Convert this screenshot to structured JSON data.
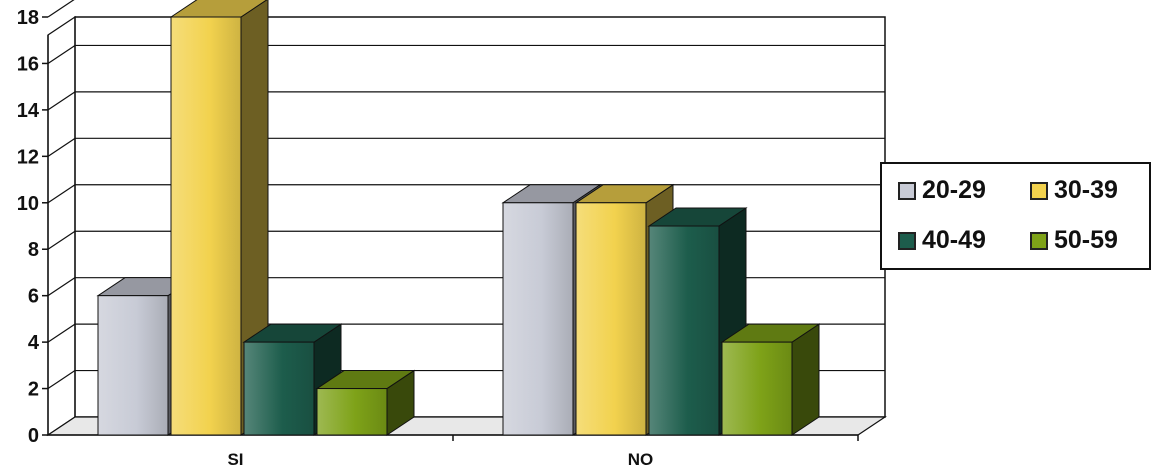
{
  "chart_data": {
    "type": "bar",
    "categories": [
      "SI",
      "NO"
    ],
    "series": [
      {
        "name": "20-29",
        "values": [
          6,
          10
        ],
        "color": "#c8cbd6"
      },
      {
        "name": "30-39",
        "values": [
          18,
          10
        ],
        "color": "#f2d24e"
      },
      {
        "name": "40-49",
        "values": [
          4,
          9
        ],
        "color": "#1d5d4c"
      },
      {
        "name": "50-59",
        "values": [
          2,
          4
        ],
        "color": "#7ea218"
      }
    ],
    "yticks": [
      "0",
      "2",
      "4",
      "6",
      "8",
      "10",
      "12",
      "14",
      "16",
      "18"
    ],
    "ylim": [
      0,
      18
    ],
    "grid": true,
    "legend_position": "right",
    "style": "3d-clustered-bar"
  }
}
